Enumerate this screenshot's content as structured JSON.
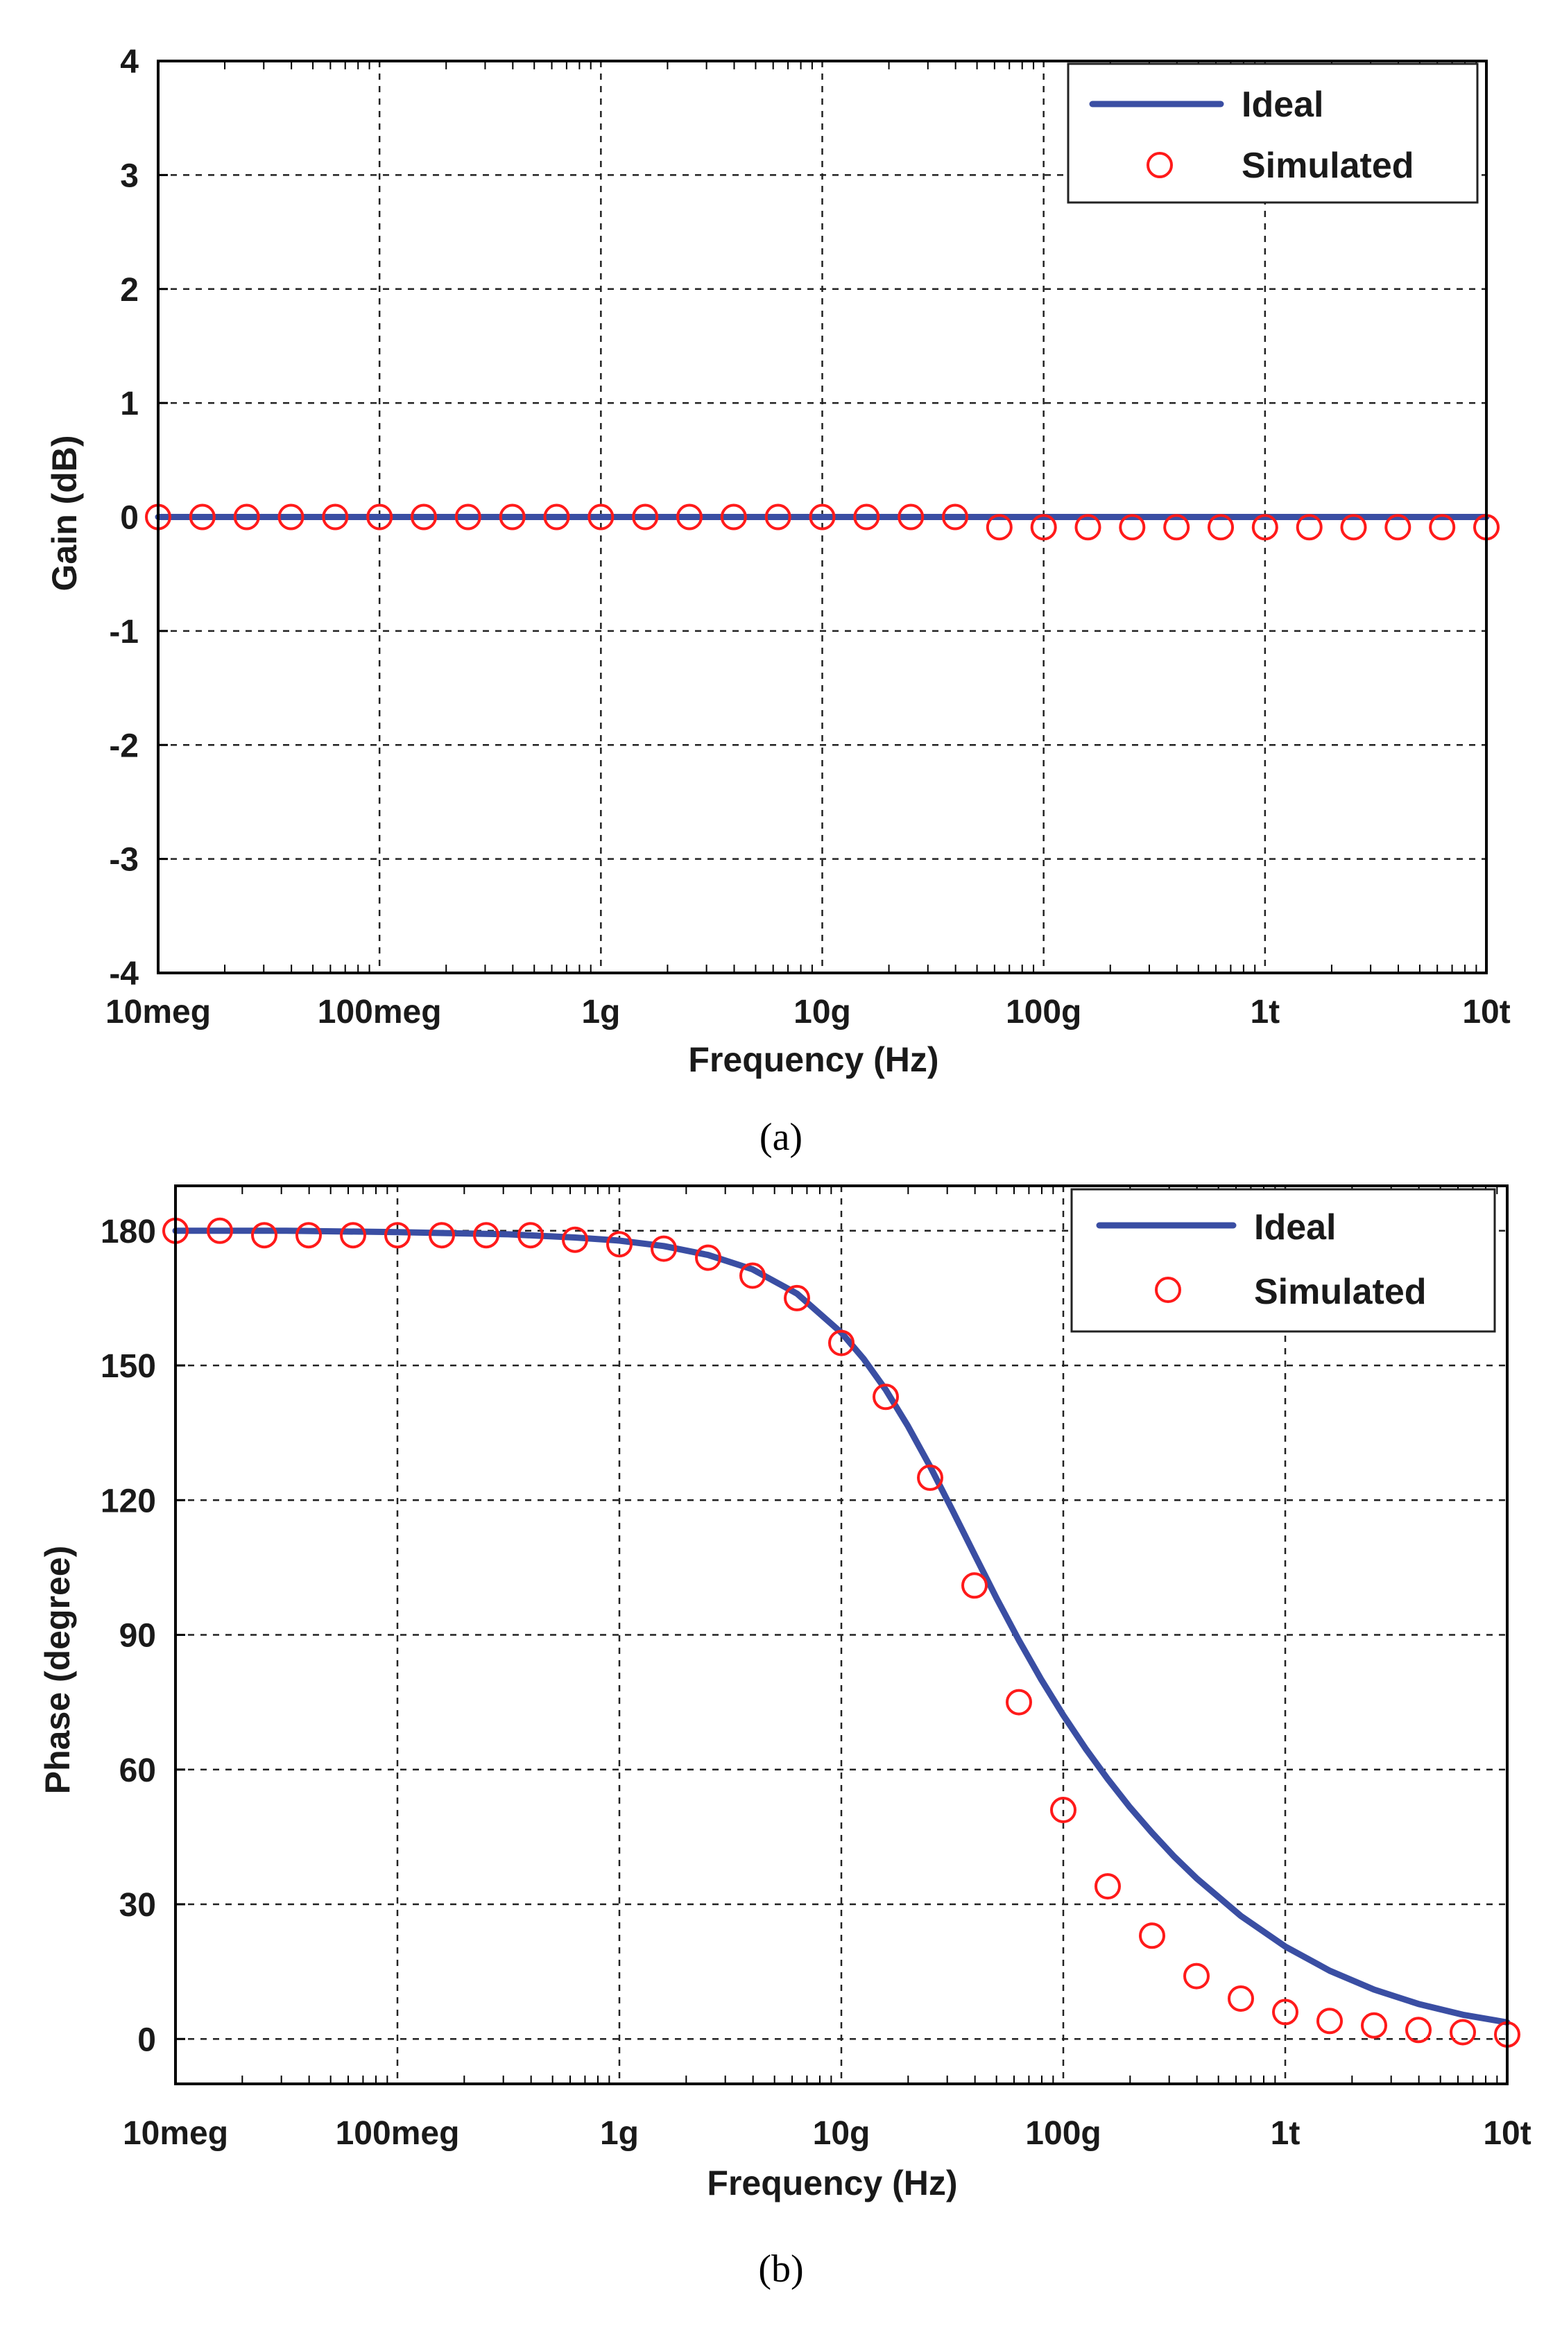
{
  "chart_data": [
    {
      "type": "line",
      "panel": "a",
      "caption": "(a)",
      "xlabel": "Frequency (Hz)",
      "ylabel": "Gain (dB)",
      "xscale": "log",
      "xlim": [
        10000000,
        10000000000000
      ],
      "ylim": [
        -4,
        4
      ],
      "x_ticks": [
        10000000,
        100000000,
        1000000000,
        10000000000,
        100000000000,
        1000000000000,
        10000000000000
      ],
      "x_tick_labels": [
        "10meg",
        "100meg",
        "1g",
        "10g",
        "100g",
        "1t",
        "10t"
      ],
      "y_ticks": [
        4,
        3,
        2,
        1,
        0,
        -1,
        -2,
        -3,
        -4
      ],
      "y_tick_labels": [
        "4",
        "3",
        "2",
        "1",
        "0",
        "-1",
        "-2",
        "-3",
        "-4"
      ],
      "grid": true,
      "legend_position": "top-right",
      "series": [
        {
          "name": "Ideal",
          "style": "line",
          "x": [
            10000000,
            10000000000000
          ],
          "y": [
            0,
            0
          ]
        },
        {
          "name": "Simulated",
          "style": "circle-markers",
          "x_log10": [
            7.0,
            7.2,
            7.4,
            7.6,
            7.8,
            8.0,
            8.2,
            8.4,
            8.6,
            8.8,
            9.0,
            9.2,
            9.4,
            9.6,
            9.8,
            10.0,
            10.2,
            10.4,
            10.6,
            10.8,
            11.0,
            11.2,
            11.4,
            11.6,
            11.8,
            12.0,
            12.2,
            12.4,
            12.6,
            12.8,
            13.0
          ],
          "y": [
            0,
            0,
            0,
            0,
            0,
            0,
            0,
            0,
            0,
            0,
            0,
            0,
            0,
            0,
            0,
            0,
            0,
            0,
            0,
            -0.09,
            -0.09,
            -0.09,
            -0.09,
            -0.09,
            -0.09,
            -0.09,
            -0.09,
            -0.09,
            -0.09,
            -0.09,
            -0.09
          ]
        }
      ]
    },
    {
      "type": "line",
      "panel": "b",
      "caption": "(b)",
      "xlabel": "Frequency (Hz)",
      "ylabel": "Phase (degree)",
      "xscale": "log",
      "xlim": [
        10000000,
        10000000000000
      ],
      "ylim": [
        -10,
        190
      ],
      "x_ticks": [
        10000000,
        100000000,
        1000000000,
        10000000000,
        100000000000,
        1000000000000,
        10000000000000
      ],
      "x_tick_labels": [
        "10meg",
        "100meg",
        "1g",
        "10g",
        "100g",
        "1t",
        "10t"
      ],
      "y_ticks": [
        180,
        150,
        120,
        90,
        60,
        30,
        0
      ],
      "y_tick_labels": [
        "180",
        "150",
        "120",
        "90",
        "60",
        "30",
        "0"
      ],
      "grid": true,
      "legend_position": "top-right",
      "series": [
        {
          "name": "Ideal",
          "style": "line",
          "x_log10": [
            7.0,
            7.5,
            8.0,
            8.5,
            8.8,
            9.0,
            9.2,
            9.4,
            9.6,
            9.8,
            10.0,
            10.1,
            10.2,
            10.3,
            10.4,
            10.5,
            10.6,
            10.7,
            10.8,
            10.9,
            11.0,
            11.1,
            11.2,
            11.3,
            11.4,
            11.5,
            11.6,
            11.8,
            12.0,
            12.2,
            12.4,
            12.6,
            12.8,
            13.0
          ],
          "y": [
            180,
            180,
            179.7,
            179.2,
            178.5,
            177.8,
            176.6,
            174.6,
            171.4,
            166.0,
            157.3,
            151.5,
            144.6,
            136.5,
            127.5,
            117.8,
            107.9,
            98.1,
            88.8,
            80.1,
            72.1,
            64.7,
            57.9,
            51.6,
            45.9,
            40.6,
            35.8,
            27.4,
            20.6,
            15.2,
            11.0,
            7.8,
            5.4,
            3.7
          ]
        },
        {
          "name": "Simulated",
          "style": "circle-markers",
          "x_log10": [
            7.0,
            7.2,
            7.4,
            7.6,
            7.8,
            8.0,
            8.2,
            8.4,
            8.6,
            8.8,
            9.0,
            9.2,
            9.4,
            9.6,
            9.8,
            10.0,
            10.2,
            10.4,
            10.6,
            10.8,
            11.0,
            11.2,
            11.4,
            11.6,
            11.8,
            12.0,
            12.2,
            12.4,
            12.6,
            12.8,
            13.0
          ],
          "y": [
            180,
            180,
            179,
            179,
            179,
            179,
            179,
            179,
            179,
            178,
            177,
            176,
            174,
            170,
            165,
            155,
            143,
            125,
            101,
            75,
            51,
            34,
            23,
            14,
            9,
            6,
            4,
            3,
            2,
            1.5,
            1
          ]
        }
      ]
    }
  ]
}
